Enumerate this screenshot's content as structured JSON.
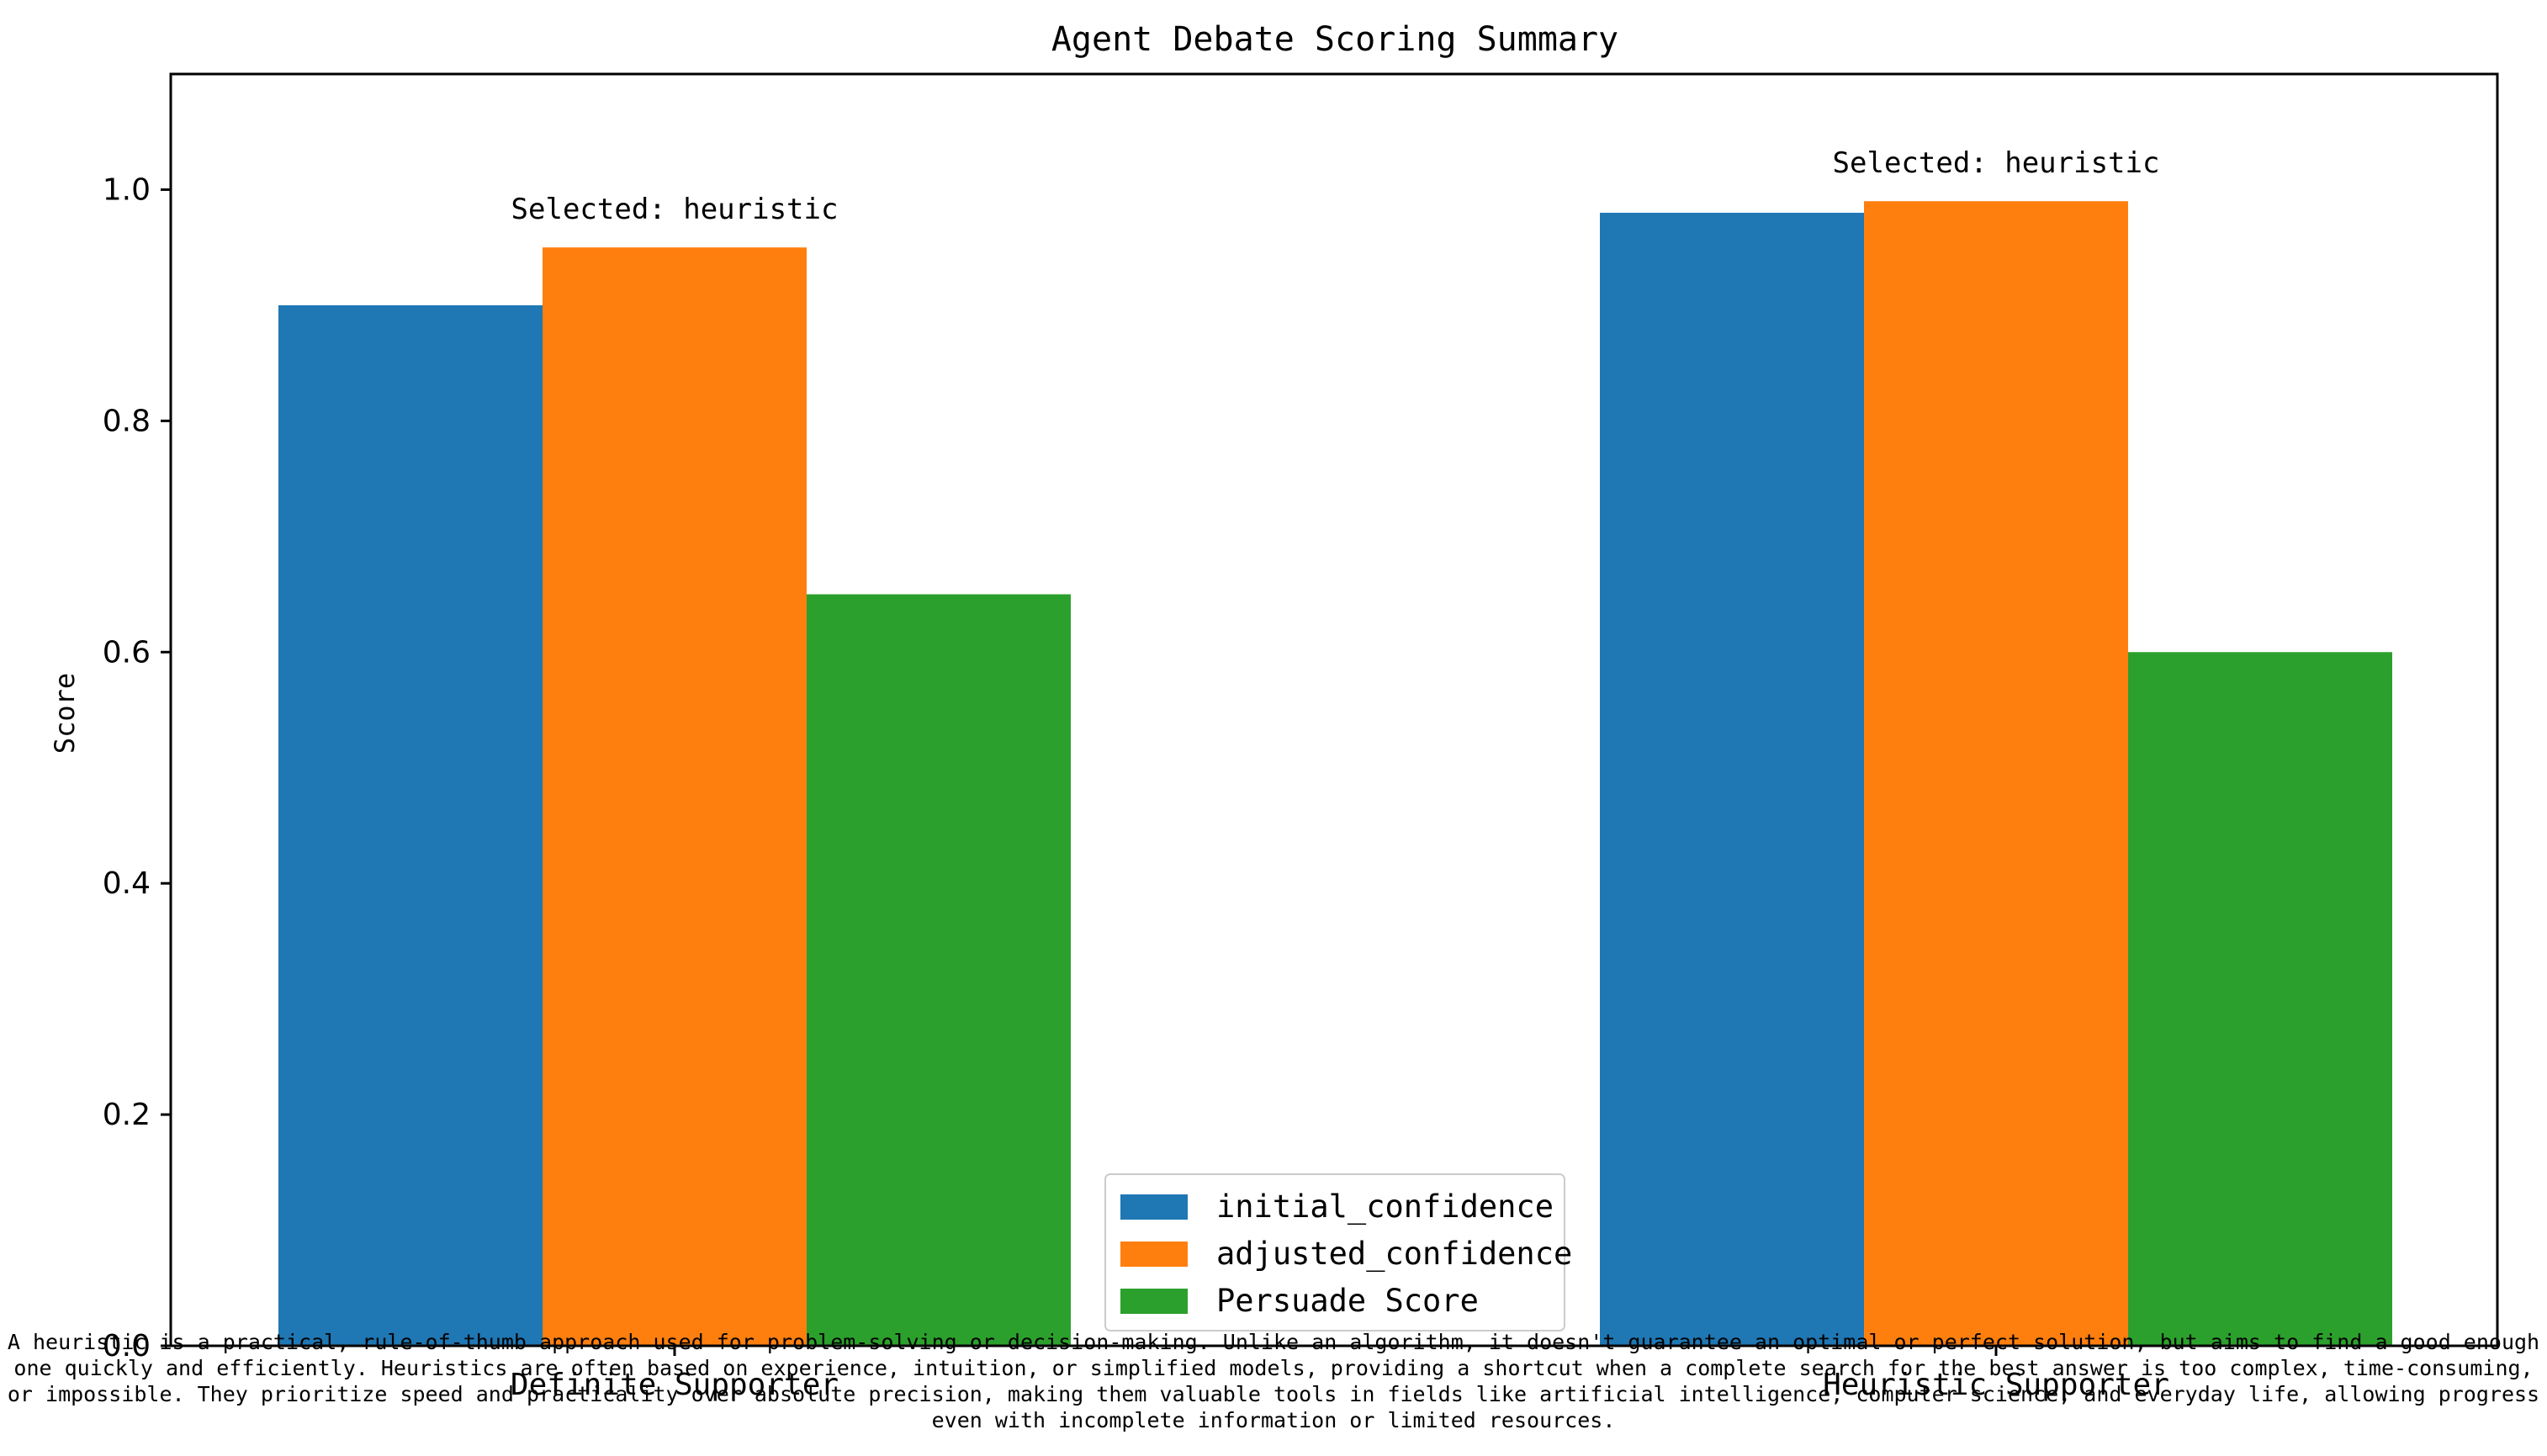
{
  "chart_data": {
    "type": "bar",
    "title": "Agent Debate Scoring Summary",
    "xlabel": "",
    "ylabel": "Score",
    "ylim": [
      0,
      1.1
    ],
    "yticks": [
      "0.0",
      "0.2",
      "0.4",
      "0.6",
      "0.8",
      "1.0"
    ],
    "categories": [
      "Definite Supporter",
      "Heuristic Supporter"
    ],
    "series": [
      {
        "name": "initial_confidence",
        "values": [
          0.9,
          0.98
        ],
        "color": "#1f77b4"
      },
      {
        "name": "adjusted_confidence",
        "values": [
          0.95,
          0.99
        ],
        "color": "#ff7f0e"
      },
      {
        "name": "Persuade Score",
        "values": [
          0.65,
          0.6
        ],
        "color": "#2ca02c"
      }
    ],
    "annotations": [
      "Selected: heuristic",
      "Selected: heuristic"
    ],
    "legend_position": "bottom-center",
    "grid": false
  },
  "caption": "A heuristic is a practical, rule-of-thumb approach used for problem-solving or decision-making. Unlike an algorithm, it doesn't guarantee an optimal or perfect solution, but aims to find a good enough one quickly and efficiently. Heuristics are often based on experience, intuition, or simplified models, providing a shortcut when a complete search for the best answer is too complex, time-consuming, or impossible. They prioritize speed and practicality over absolute precision, making them valuable tools in fields like artificial intelligence, computer science, and everyday life, allowing progress even with incomplete information or limited resources."
}
